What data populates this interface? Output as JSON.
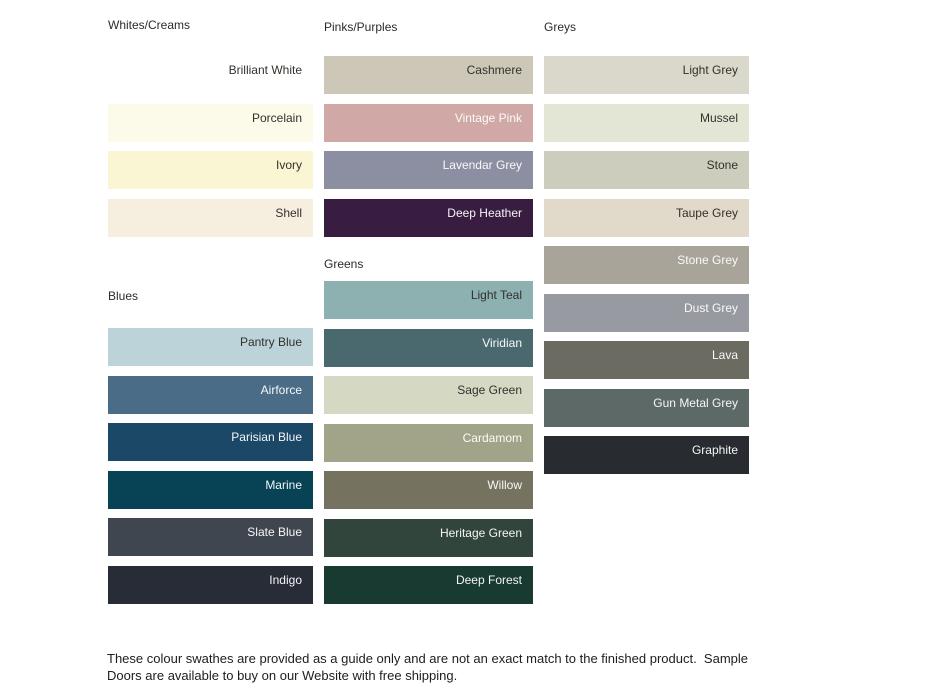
{
  "footer": {
    "line1": "These colour swathes are provided as a guide only and are not an exact match to the finished product.  Sample",
    "line2": "Doors are available to buy on our Website with free shipping."
  },
  "columns": [
    {
      "sections": [
        {
          "title": "Whites/Creams",
          "swatches": [
            {
              "name": "Brilliant White",
              "color": "#FFFFFF",
              "label_tone": "dark"
            },
            {
              "name": "Porcelain",
              "color": "#FCFAE8",
              "label_tone": "dark"
            },
            {
              "name": "Ivory",
              "color": "#FAF5D2",
              "label_tone": "dark"
            },
            {
              "name": "Shell",
              "color": "#F6EFDF",
              "label_tone": "dark"
            }
          ]
        },
        {
          "title": "Blues",
          "swatches": [
            {
              "name": "Pantry Blue",
              "color": "#BDD3DA",
              "label_tone": "dark"
            },
            {
              "name": "Airforce",
              "color": "#4B6C86",
              "label_tone": "light"
            },
            {
              "name": "Parisian Blue",
              "color": "#1C4868",
              "label_tone": "light"
            },
            {
              "name": "Marine",
              "color": "#074355",
              "label_tone": "light"
            },
            {
              "name": "Slate Blue",
              "color": "#40464F",
              "label_tone": "light"
            },
            {
              "name": "Indigo",
              "color": "#272C37",
              "label_tone": "light"
            }
          ]
        }
      ]
    },
    {
      "sections": [
        {
          "title": "Pinks/Purples",
          "swatches": [
            {
              "name": "Cashmere",
              "color": "#CDC7B7",
              "label_tone": "dark"
            },
            {
              "name": "Vintage Pink",
              "color": "#D0A8A5",
              "label_tone": "light"
            },
            {
              "name": "Lavendar Grey",
              "color": "#8B8FA1",
              "label_tone": "light"
            },
            {
              "name": "Deep Heather",
              "color": "#391D40",
              "label_tone": "light"
            }
          ]
        },
        {
          "title": "Greens",
          "swatches": [
            {
              "name": "Light Teal",
              "color": "#8DB0B0",
              "label_tone": "dark"
            },
            {
              "name": "Viridian",
              "color": "#4A696E",
              "label_tone": "light"
            },
            {
              "name": "Sage Green",
              "color": "#D5D9C4",
              "label_tone": "dark"
            },
            {
              "name": "Cardamom",
              "color": "#A2A489",
              "label_tone": "light"
            },
            {
              "name": "Willow",
              "color": "#757260",
              "label_tone": "light"
            },
            {
              "name": "Heritage Green",
              "color": "#32453C",
              "label_tone": "light"
            },
            {
              "name": "Deep Forest",
              "color": "#193A31",
              "label_tone": "light"
            }
          ]
        }
      ]
    },
    {
      "sections": [
        {
          "title": "Greys",
          "swatches": [
            {
              "name": "Light Grey",
              "color": "#D9D8CA",
              "label_tone": "dark"
            },
            {
              "name": "Mussel",
              "color": "#E3E5D5",
              "label_tone": "dark"
            },
            {
              "name": "Stone",
              "color": "#CCCDBC",
              "label_tone": "dark"
            },
            {
              "name": "Taupe Grey",
              "color": "#E1DACA",
              "label_tone": "dark"
            },
            {
              "name": "Stone Grey",
              "color": "#A9A49A",
              "label_tone": "light"
            },
            {
              "name": "Dust Grey",
              "color": "#979AA1",
              "label_tone": "light"
            },
            {
              "name": "Lava",
              "color": "#6C6B62",
              "label_tone": "light"
            },
            {
              "name": "Gun Metal Grey",
              "color": "#5C6966",
              "label_tone": "light"
            },
            {
              "name": "Graphite",
              "color": "#282C31",
              "label_tone": "light"
            }
          ]
        }
      ]
    }
  ]
}
